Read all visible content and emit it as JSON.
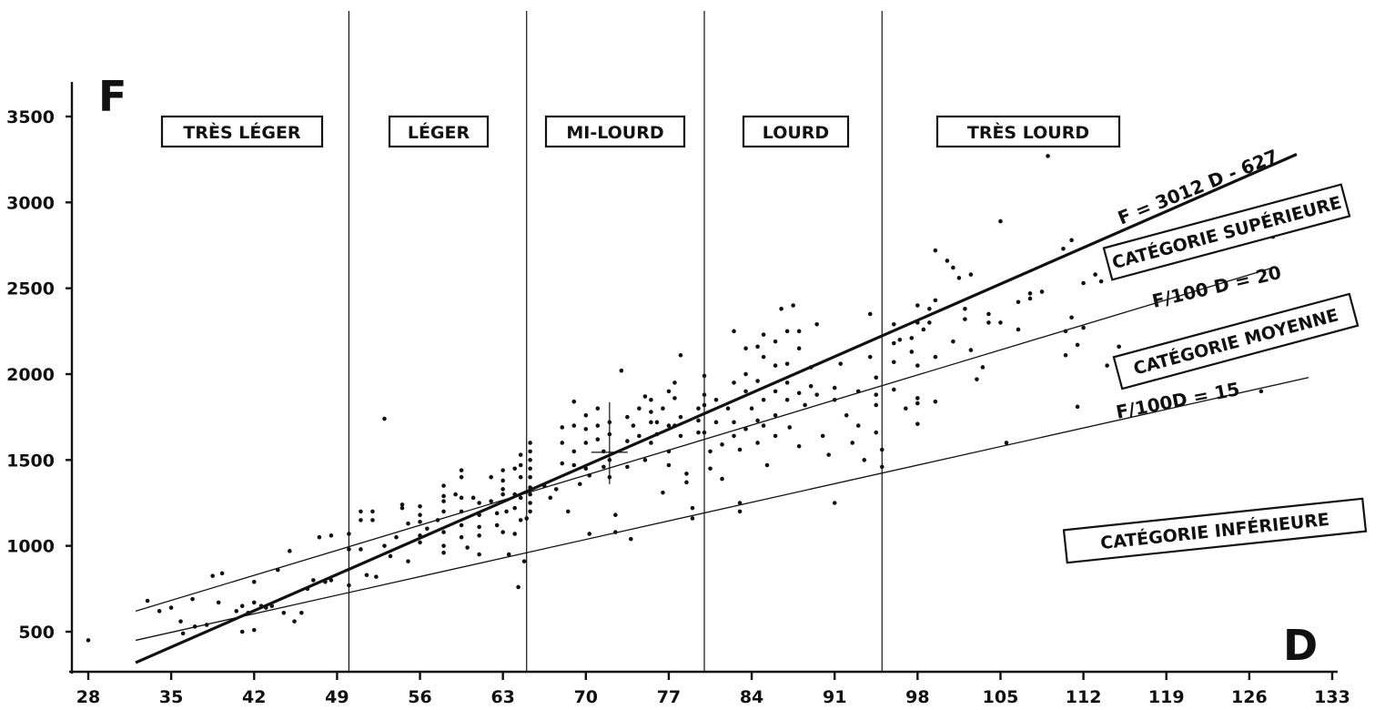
{
  "chart_data": {
    "type": "scatter",
    "title": "",
    "xlabel": "D",
    "ylabel": "F",
    "xlim": [
      28,
      133
    ],
    "ylim": [
      300,
      3700
    ],
    "xticks": [
      28,
      35,
      42,
      49,
      56,
      63,
      70,
      77,
      84,
      91,
      98,
      105,
      112,
      119,
      126,
      133
    ],
    "yticks": [
      500,
      1000,
      1500,
      2000,
      2500,
      3000,
      3500
    ],
    "grid": false,
    "weight_classes": [
      {
        "label": "TRÈS LÉGER",
        "x_from": 28,
        "x_to": 50
      },
      {
        "label": "LÉGER",
        "x_from": 50,
        "x_to": 65
      },
      {
        "label": "MI-LOURD",
        "x_from": 65,
        "x_to": 80
      },
      {
        "label": "LOURD",
        "x_from": 80,
        "x_to": 95
      },
      {
        "label": "TRÈS LOURD",
        "x_from": 95,
        "x_to": 133
      }
    ],
    "class_boundaries_x": [
      50,
      65,
      80,
      95
    ],
    "lines": [
      {
        "label": "F = 3012 D - 627",
        "kind": "regression",
        "x": [
          32,
          130
        ],
        "y": [
          320,
          3280
        ]
      },
      {
        "label": "F/100 D = 20",
        "kind": "ratio",
        "x": [
          32,
          128
        ],
        "y": [
          620,
          2620
        ]
      },
      {
        "label": "F/100D = 15",
        "kind": "ratio",
        "x": [
          32,
          131
        ],
        "y": [
          450,
          1980
        ]
      }
    ],
    "regions": [
      "CATÉGORIE SUPÉRIEURE",
      "CATÉGORIE MOYENNE",
      "CATÉGORIE INFÉRIEURE"
    ],
    "mean_marker": {
      "x": 72,
      "y": 1545
    },
    "series": [
      {
        "values": [
          [
            28,
            450
          ],
          [
            33,
            680
          ],
          [
            34,
            620
          ],
          [
            35,
            640
          ],
          [
            35.8,
            560
          ],
          [
            36,
            490
          ],
          [
            36.8,
            690
          ],
          [
            37,
            530
          ],
          [
            38,
            540
          ],
          [
            38.5,
            825
          ],
          [
            39.3,
            840
          ],
          [
            39,
            670
          ],
          [
            40.5,
            620
          ],
          [
            41,
            650
          ],
          [
            41,
            500
          ],
          [
            41.5,
            610
          ],
          [
            42,
            790
          ],
          [
            42,
            670
          ],
          [
            42,
            510
          ],
          [
            42.6,
            650
          ],
          [
            43,
            640
          ],
          [
            43.5,
            650
          ],
          [
            44,
            860
          ],
          [
            44.5,
            610
          ],
          [
            45,
            970
          ],
          [
            45.4,
            560
          ],
          [
            46,
            610
          ],
          [
            46.5,
            750
          ],
          [
            47,
            800
          ],
          [
            47.5,
            1050
          ],
          [
            48,
            790
          ],
          [
            48.5,
            1060
          ],
          [
            48.5,
            800
          ],
          [
            50,
            1070
          ],
          [
            50,
            980
          ],
          [
            50,
            770
          ],
          [
            51,
            1200
          ],
          [
            51,
            1150
          ],
          [
            51,
            980
          ],
          [
            51.5,
            830
          ],
          [
            52,
            1200
          ],
          [
            52,
            1150
          ],
          [
            52.3,
            820
          ],
          [
            53,
            1740
          ],
          [
            53,
            1000
          ],
          [
            53.5,
            940
          ],
          [
            54,
            1050
          ],
          [
            54.5,
            1240
          ],
          [
            54.5,
            1220
          ],
          [
            55,
            1130
          ],
          [
            55,
            910
          ],
          [
            56,
            1230
          ],
          [
            56,
            1180
          ],
          [
            56,
            1140
          ],
          [
            56,
            1060
          ],
          [
            56,
            1020
          ],
          [
            56.6,
            1100
          ],
          [
            57.5,
            1150
          ],
          [
            58,
            1350
          ],
          [
            58,
            1290
          ],
          [
            58,
            1260
          ],
          [
            58,
            1200
          ],
          [
            58,
            1080
          ],
          [
            58,
            1000
          ],
          [
            58,
            960
          ],
          [
            59,
            1300
          ],
          [
            59.5,
            1440
          ],
          [
            59.5,
            1400
          ],
          [
            59.5,
            1280
          ],
          [
            59.5,
            1200
          ],
          [
            59.5,
            1120
          ],
          [
            59.5,
            1050
          ],
          [
            60,
            990
          ],
          [
            60.5,
            1280
          ],
          [
            61,
            1250
          ],
          [
            61,
            1180
          ],
          [
            61,
            1110
          ],
          [
            61,
            1060
          ],
          [
            61,
            950
          ],
          [
            62,
            1400
          ],
          [
            62,
            1260
          ],
          [
            62.5,
            1190
          ],
          [
            62.5,
            1120
          ],
          [
            63,
            1440
          ],
          [
            63,
            1380
          ],
          [
            63,
            1330
          ],
          [
            63,
            1300
          ],
          [
            63,
            1080
          ],
          [
            63.3,
            1200
          ],
          [
            63.5,
            950
          ],
          [
            64,
            1450
          ],
          [
            64,
            1300
          ],
          [
            64,
            1220
          ],
          [
            64,
            1070
          ],
          [
            64.5,
            1530
          ],
          [
            64.5,
            1470
          ],
          [
            64.5,
            1400
          ],
          [
            64.5,
            1280
          ],
          [
            64.5,
            1150
          ],
          [
            65,
            1160
          ],
          [
            64.3,
            760
          ],
          [
            64.8,
            910
          ],
          [
            65.3,
            1600
          ],
          [
            65.3,
            1550
          ],
          [
            65.3,
            1500
          ],
          [
            65.3,
            1450
          ],
          [
            65.3,
            1400
          ],
          [
            65.3,
            1340
          ],
          [
            65.3,
            1300
          ],
          [
            65.3,
            1250
          ],
          [
            65.3,
            1200
          ],
          [
            66.5,
            1350
          ],
          [
            67,
            1280
          ],
          [
            67.5,
            1330
          ],
          [
            68,
            1690
          ],
          [
            68,
            1600
          ],
          [
            68,
            1480
          ],
          [
            68.5,
            1200
          ],
          [
            69,
            1840
          ],
          [
            69,
            1700
          ],
          [
            69,
            1550
          ],
          [
            69,
            1470
          ],
          [
            69.5,
            1360
          ],
          [
            70,
            1760
          ],
          [
            70,
            1680
          ],
          [
            70,
            1600
          ],
          [
            70,
            1450
          ],
          [
            70.3,
            1410
          ],
          [
            70.3,
            1070
          ],
          [
            71,
            1800
          ],
          [
            71,
            1700
          ],
          [
            71,
            1620
          ],
          [
            71.5,
            1550
          ],
          [
            71.5,
            1460
          ],
          [
            72,
            1720
          ],
          [
            72,
            1650
          ],
          [
            72,
            1500
          ],
          [
            72,
            1400
          ],
          [
            72.5,
            1180
          ],
          [
            72.5,
            1080
          ],
          [
            73,
            2020
          ],
          [
            73.5,
            1750
          ],
          [
            73.5,
            1610
          ],
          [
            73.5,
            1460
          ],
          [
            73.8,
            1040
          ],
          [
            74,
            1700
          ],
          [
            74.5,
            1800
          ],
          [
            74.5,
            1640
          ],
          [
            75,
            1870
          ],
          [
            75,
            1500
          ],
          [
            75.5,
            1850
          ],
          [
            75.5,
            1780
          ],
          [
            75.5,
            1720
          ],
          [
            75.5,
            1600
          ],
          [
            76,
            1720
          ],
          [
            76,
            1650
          ],
          [
            76.5,
            1800
          ],
          [
            76.5,
            1310
          ],
          [
            77,
            1900
          ],
          [
            77,
            1700
          ],
          [
            77,
            1550
          ],
          [
            77,
            1470
          ],
          [
            77.5,
            1950
          ],
          [
            77.5,
            1860
          ],
          [
            77.5,
            1700
          ],
          [
            78,
            2110
          ],
          [
            78,
            1750
          ],
          [
            78,
            1640
          ],
          [
            78.5,
            1420
          ],
          [
            78.5,
            1370
          ],
          [
            79,
            1220
          ],
          [
            79,
            1160
          ],
          [
            79.5,
            1800
          ],
          [
            79.5,
            1730
          ],
          [
            79.5,
            1660
          ],
          [
            80,
            1990
          ],
          [
            80,
            1880
          ],
          [
            80,
            1820
          ],
          [
            80,
            1660
          ],
          [
            80.5,
            1550
          ],
          [
            80.5,
            1450
          ],
          [
            81,
            1850
          ],
          [
            81,
            1720
          ],
          [
            81.5,
            1590
          ],
          [
            81.5,
            1390
          ],
          [
            82,
            1800
          ],
          [
            82.5,
            2250
          ],
          [
            82.5,
            1950
          ],
          [
            82.5,
            1720
          ],
          [
            82.5,
            1640
          ],
          [
            83,
            1560
          ],
          [
            83,
            1250
          ],
          [
            83,
            1200
          ],
          [
            83.5,
            2150
          ],
          [
            83.5,
            2000
          ],
          [
            83.5,
            1900
          ],
          [
            83.5,
            1680
          ],
          [
            84,
            1800
          ],
          [
            84.5,
            2160
          ],
          [
            84.5,
            1960
          ],
          [
            84.5,
            1730
          ],
          [
            84.5,
            1600
          ],
          [
            85,
            2230
          ],
          [
            85,
            2100
          ],
          [
            85,
            1850
          ],
          [
            85,
            1700
          ],
          [
            85.3,
            1470
          ],
          [
            86,
            2190
          ],
          [
            86,
            2050
          ],
          [
            86,
            1900
          ],
          [
            86,
            1760
          ],
          [
            86,
            1640
          ],
          [
            86.5,
            2380
          ],
          [
            87,
            2250
          ],
          [
            87,
            2060
          ],
          [
            87,
            1950
          ],
          [
            87,
            1850
          ],
          [
            87.2,
            1690
          ],
          [
            87.5,
            2400
          ],
          [
            88,
            2250
          ],
          [
            88,
            2150
          ],
          [
            88,
            1890
          ],
          [
            88,
            1580
          ],
          [
            88.5,
            1820
          ],
          [
            89,
            2040
          ],
          [
            89,
            1930
          ],
          [
            89.5,
            2290
          ],
          [
            89.5,
            1880
          ],
          [
            90,
            1640
          ],
          [
            90.5,
            1530
          ],
          [
            91,
            1920
          ],
          [
            91,
            1850
          ],
          [
            91,
            1250
          ],
          [
            91.5,
            2060
          ],
          [
            92,
            1760
          ],
          [
            92.5,
            1600
          ],
          [
            93,
            1900
          ],
          [
            93,
            1700
          ],
          [
            93.5,
            1500
          ],
          [
            94,
            2350
          ],
          [
            94,
            2100
          ],
          [
            94.5,
            1980
          ],
          [
            94.5,
            1880
          ],
          [
            94.5,
            1820
          ],
          [
            94.5,
            1660
          ],
          [
            95,
            1560
          ],
          [
            95,
            1460
          ],
          [
            96,
            2290
          ],
          [
            96,
            2180
          ],
          [
            96,
            2070
          ],
          [
            96,
            1910
          ],
          [
            96.5,
            2200
          ],
          [
            97,
            1800
          ],
          [
            97.5,
            2210
          ],
          [
            97.5,
            2130
          ],
          [
            98,
            2400
          ],
          [
            98,
            2300
          ],
          [
            98,
            2050
          ],
          [
            98,
            1860
          ],
          [
            98,
            1830
          ],
          [
            98,
            1710
          ],
          [
            98.5,
            2260
          ],
          [
            99,
            2380
          ],
          [
            99,
            2300
          ],
          [
            99.5,
            2720
          ],
          [
            99.5,
            2430
          ],
          [
            99.5,
            2100
          ],
          [
            99.5,
            1840
          ],
          [
            100.5,
            2660
          ],
          [
            101,
            2620
          ],
          [
            101,
            2190
          ],
          [
            101.5,
            2560
          ],
          [
            102,
            2380
          ],
          [
            102,
            2320
          ],
          [
            102.5,
            2580
          ],
          [
            102.5,
            2140
          ],
          [
            103,
            1970
          ],
          [
            103.5,
            2040
          ],
          [
            104,
            2350
          ],
          [
            104,
            2300
          ],
          [
            105,
            2890
          ],
          [
            105,
            2300
          ],
          [
            105.5,
            1600
          ],
          [
            106.5,
            2420
          ],
          [
            106.5,
            2260
          ],
          [
            107.5,
            2470
          ],
          [
            107.5,
            2440
          ],
          [
            108.5,
            2480
          ],
          [
            109,
            3270
          ],
          [
            110.3,
            2730
          ],
          [
            110.5,
            2250
          ],
          [
            110.5,
            2110
          ],
          [
            111,
            2780
          ],
          [
            111,
            2330
          ],
          [
            111.5,
            2170
          ],
          [
            111.5,
            1810
          ],
          [
            112,
            2530
          ],
          [
            112,
            2270
          ],
          [
            113,
            2580
          ],
          [
            113.5,
            2540
          ],
          [
            114,
            2050
          ],
          [
            115,
            2160
          ],
          [
            116,
            2750
          ],
          [
            127,
            1900
          ],
          [
            128,
            2800
          ]
        ]
      }
    ]
  }
}
